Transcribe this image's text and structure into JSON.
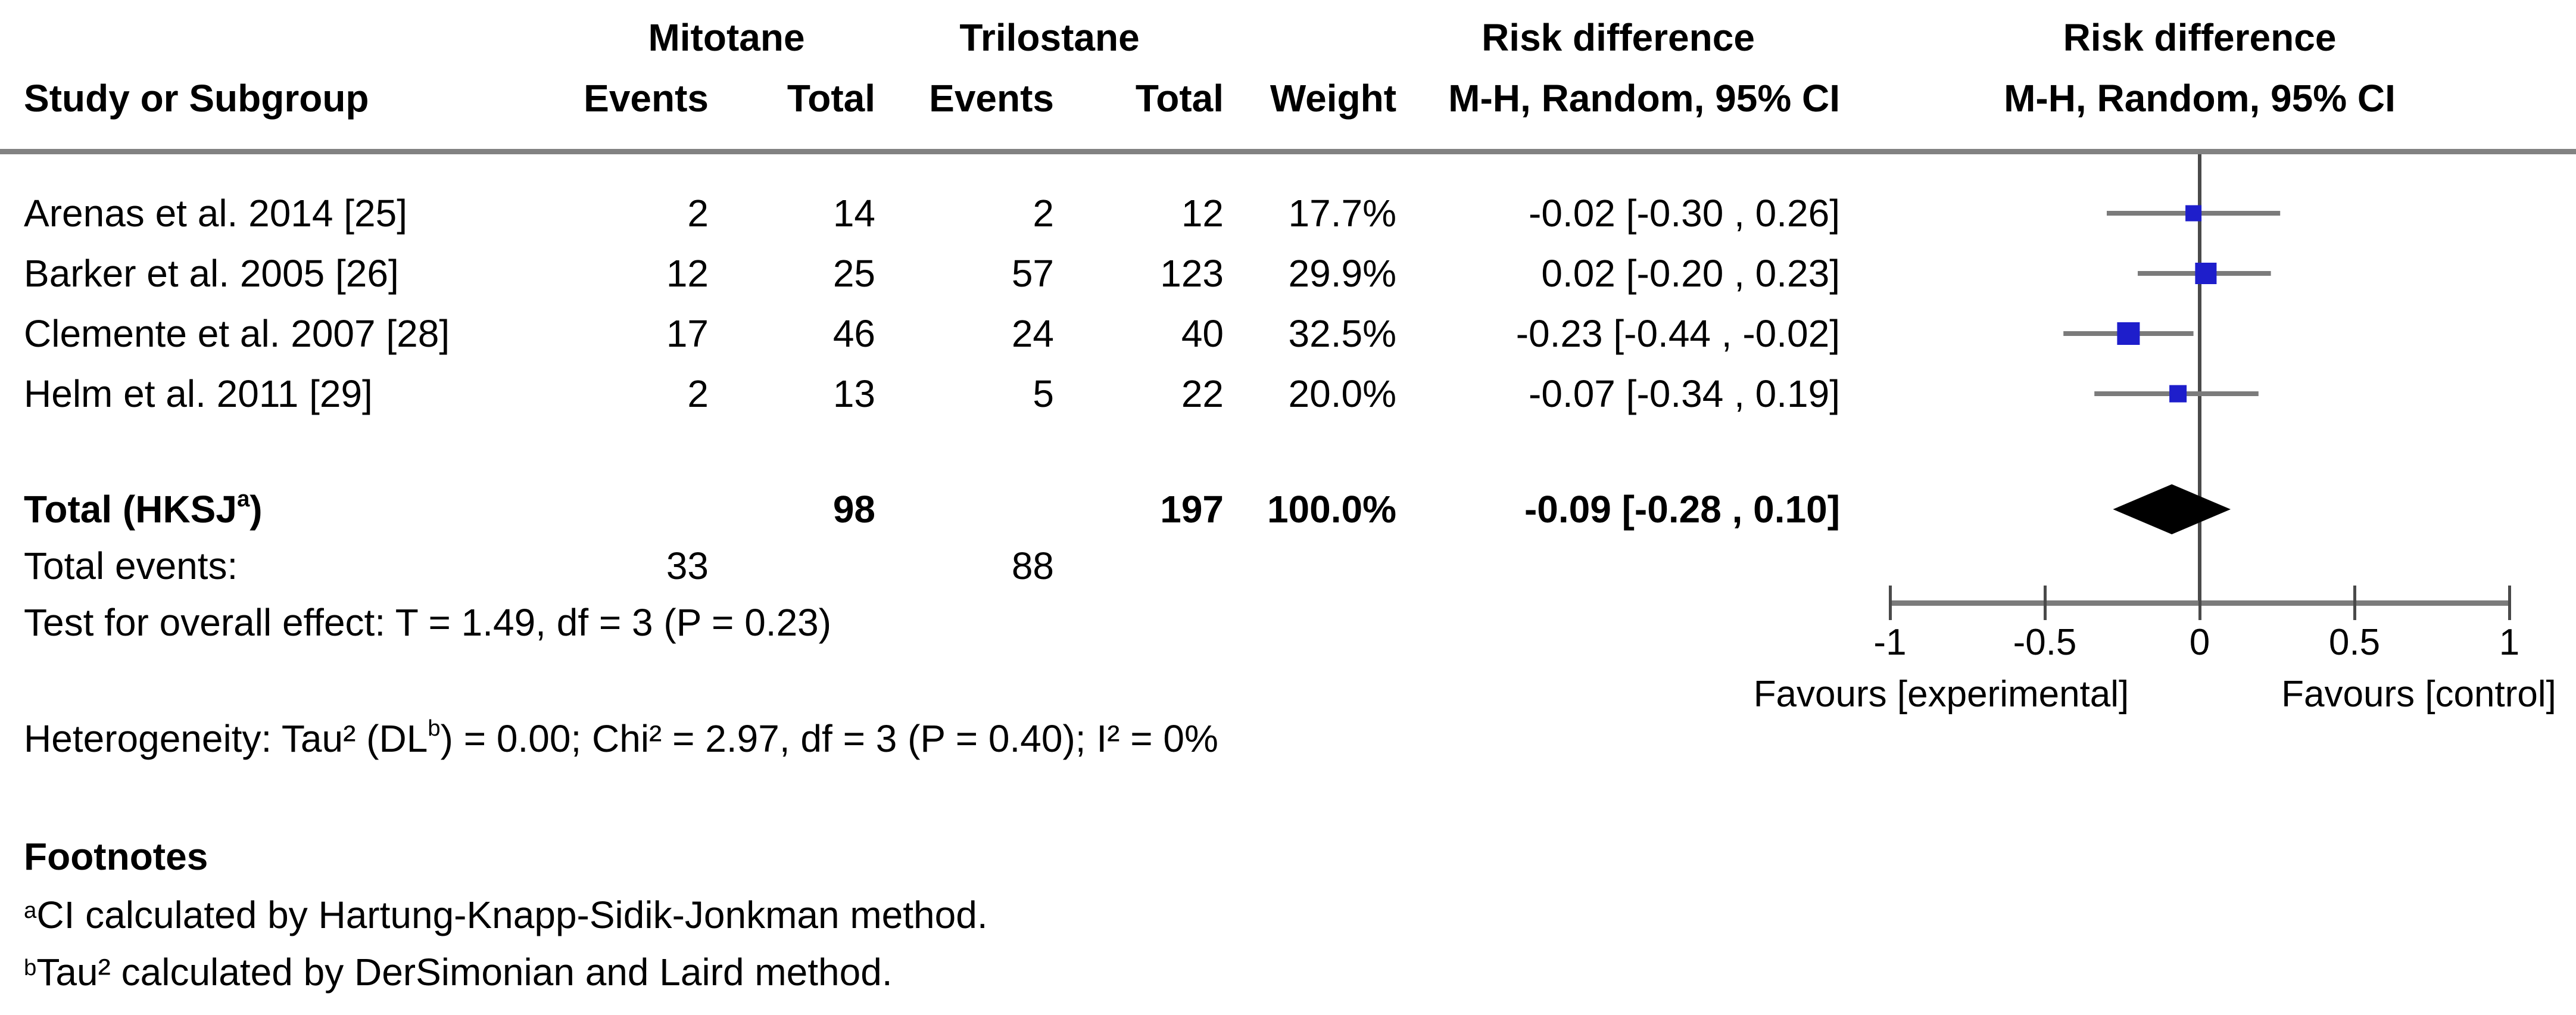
{
  "table": {
    "group_headers": {
      "mitotane": "Mitotane",
      "trilostane": "Trilostane",
      "risk_difference": "Risk difference"
    },
    "col_headers": {
      "study": "Study or Subgroup",
      "m_events": "Events",
      "m_total": "Total",
      "t_events": "Events",
      "t_total": "Total",
      "weight": "Weight",
      "mh_ci": "M-H, Random, 95% CI"
    },
    "plot_headers": {
      "title": "Risk difference",
      "subtitle": "M-H, Random, 95% CI"
    }
  },
  "rows": [
    {
      "study": "Arenas et al. 2014 [25]",
      "m_events": "2",
      "m_total": "14",
      "t_events": "2",
      "t_total": "12",
      "weight": "17.7%",
      "ci_text": "-0.02 [-0.30 , 0.26]"
    },
    {
      "study": "Barker et al. 2005 [26]",
      "m_events": "12",
      "m_total": "25",
      "t_events": "57",
      "t_total": "123",
      "weight": "29.9%",
      "ci_text": "0.02 [-0.20 , 0.23]"
    },
    {
      "study": "Clemente et al. 2007 [28]",
      "m_events": "17",
      "m_total": "46",
      "t_events": "24",
      "t_total": "40",
      "weight": "32.5%",
      "ci_text": "-0.23 [-0.44 , -0.02]"
    },
    {
      "study": "Helm et al. 2011 [29]",
      "m_events": "2",
      "m_total": "13",
      "t_events": "5",
      "t_total": "22",
      "weight": "20.0%",
      "ci_text": "-0.07 [-0.34 , 0.19]"
    }
  ],
  "total_row": {
    "label_pre": "Total (HKSJ",
    "label_sup": "a",
    "label_post": ")",
    "m_total": "98",
    "t_total": "197",
    "weight": "100.0%",
    "ci_text": "-0.09 [-0.28 , 0.10]"
  },
  "total_events": {
    "label": "Total events:",
    "mitotane": "33",
    "trilostane": "88"
  },
  "overall_effect": {
    "text": "Test for overall effect: T = 1.49, df = 3 (P = 0.23)"
  },
  "heterogeneity": {
    "pre": "Heterogeneity: Tau² (DL",
    "sup": "b",
    "post": ") = 0.00; Chi² = 2.97, df = 3 (P = 0.40); I² = 0%"
  },
  "footnotes": {
    "title": "Footnotes",
    "a_sup": "a",
    "a_text": "CI calculated by Hartung-Knapp-Sidik-Jonkman method.",
    "b_sup": "b",
    "b_text": "Tau² calculated by DerSimonian and Laird method."
  },
  "axis": {
    "tick_labels": [
      "-1",
      "-0.5",
      "0",
      "0.5",
      "1"
    ],
    "favours_left": "Favours [experimental]",
    "favours_right": "Favours [control]"
  },
  "colors": {
    "marker_blue": "#1e1ecb",
    "ci_line_gray": "#7b7b7b",
    "zero_line": "#4a4a4a",
    "axis_gray": "#7b7b7b",
    "diamond_black": "#000000",
    "rule_gray": "#828282"
  },
  "chart_data": {
    "type": "forest",
    "title": "Risk difference, M-H, Random, 95% CI",
    "effect_measure": "Risk difference",
    "model": "M-H, Random, 95% CI",
    "xlim": [
      -1,
      1
    ],
    "x_ticks": [
      -1,
      -0.5,
      0,
      0.5,
      1
    ],
    "studies": [
      {
        "name": "Arenas et al. 2014 [25]",
        "rd": -0.02,
        "ci_low": -0.3,
        "ci_high": 0.26,
        "weight": 17.7
      },
      {
        "name": "Barker et al. 2005 [26]",
        "rd": 0.02,
        "ci_low": -0.2,
        "ci_high": 0.23,
        "weight": 29.9
      },
      {
        "name": "Clemente et al. 2007 [28]",
        "rd": -0.23,
        "ci_low": -0.44,
        "ci_high": -0.02,
        "weight": 32.5
      },
      {
        "name": "Helm et al. 2011 [29]",
        "rd": -0.07,
        "ci_low": -0.34,
        "ci_high": 0.19,
        "weight": 20.0
      }
    ],
    "total": {
      "rd": -0.09,
      "ci_low": -0.28,
      "ci_high": 0.1
    }
  }
}
